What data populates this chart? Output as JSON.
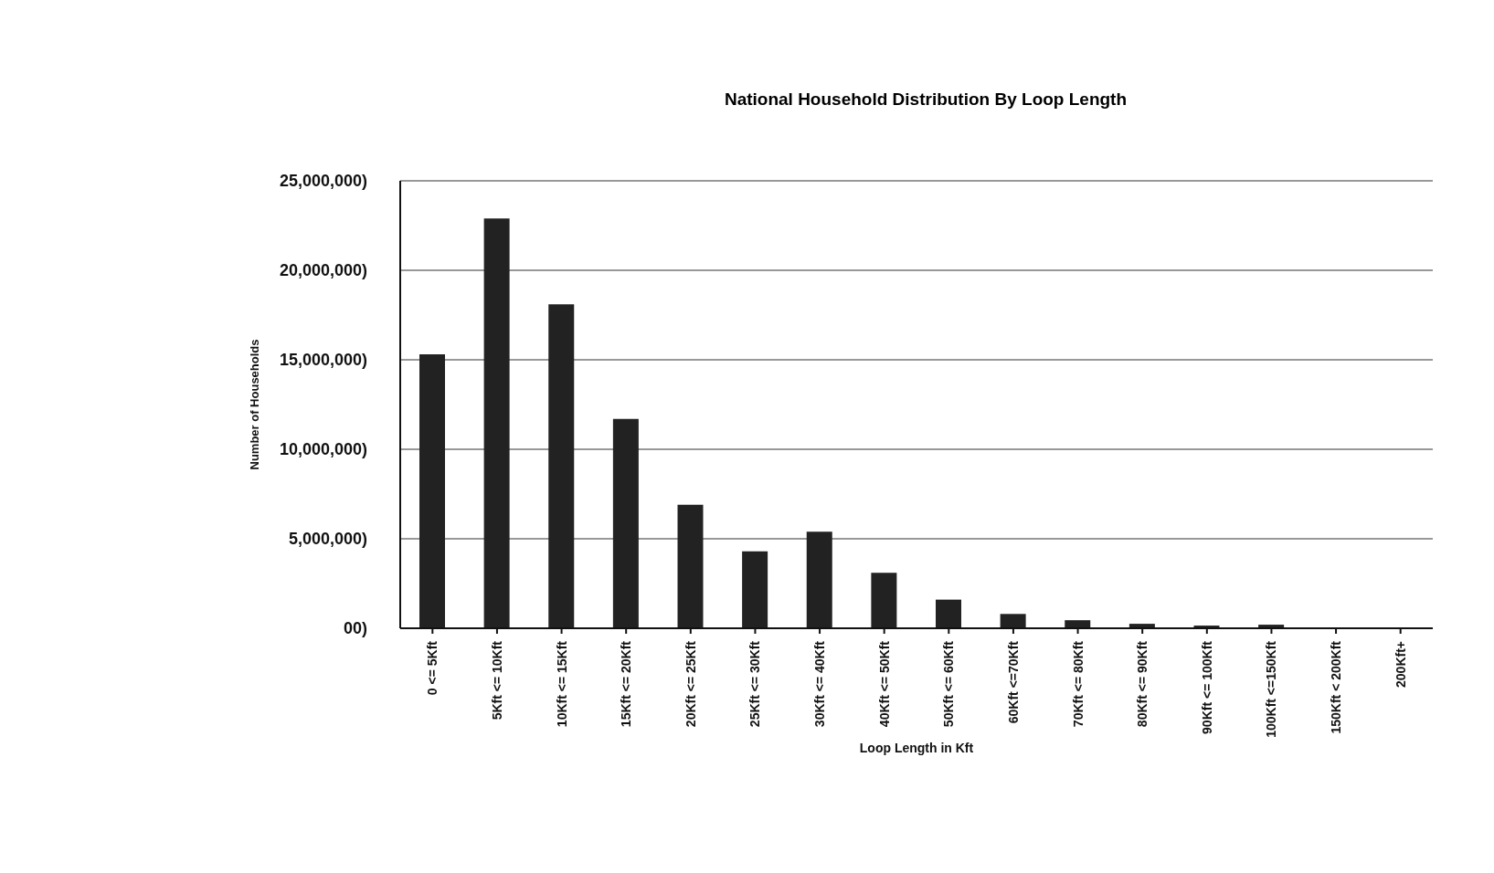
{
  "chart_data": {
    "type": "bar",
    "title": "National Household Distribution By Loop Length",
    "xlabel": "Loop Length in Kft",
    "ylabel": "Number of Households",
    "categories": [
      "0 <= 5Kft",
      "5Kft <= 10Kft",
      "10Kft <= 15Kft",
      "15Kft <= 20Kft",
      "20Kft <= 25Kft",
      "25Kft <= 30Kft",
      "30Kft <= 40Kft",
      "40Kft <= 50Kft",
      "50Kft <= 60Kft",
      "60Kft <=70Kft",
      "70Kft <= 80Kft",
      "80Kft <= 90Kft",
      "90Kft <= 100Kft",
      "100Kft <=150Kft",
      "150Kft < 200Kft",
      "200Kft+"
    ],
    "values": [
      15300000,
      22900000,
      18100000,
      11700000,
      6900000,
      4300000,
      5400000,
      3100000,
      1600000,
      800000,
      450000,
      250000,
      150000,
      200000,
      0,
      0
    ],
    "color": "#222222",
    "ylim": [
      0,
      25000000
    ],
    "yticks": [
      {
        "value": 0,
        "label": "00)"
      },
      {
        "value": 5000000,
        "label": "5,000,000)"
      },
      {
        "value": 10000000,
        "label": "10,000,000)"
      },
      {
        "value": 15000000,
        "label": "15,000,000)"
      },
      {
        "value": 20000000,
        "label": "20,000,000)"
      },
      {
        "value": 25000000,
        "label": "25,000,000)"
      }
    ],
    "grid": "y",
    "legend": false
  }
}
